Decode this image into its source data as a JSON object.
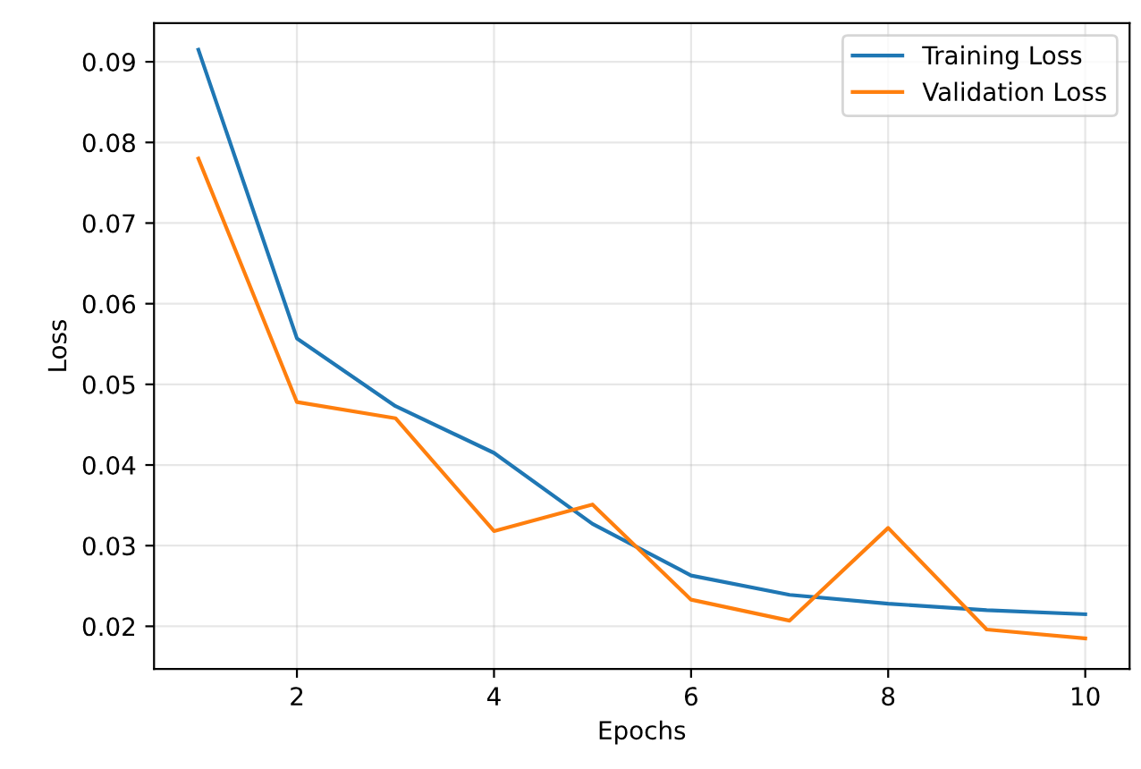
{
  "chart_data": {
    "type": "line",
    "xlabel": "Epochs",
    "ylabel": "Loss",
    "x": [
      1,
      2,
      3,
      4,
      5,
      6,
      7,
      8,
      9,
      10
    ],
    "series": [
      {
        "name": "Training Loss",
        "color": "#1f77b4",
        "values": [
          0.0915,
          0.0557,
          0.0473,
          0.0415,
          0.0327,
          0.0263,
          0.0239,
          0.0228,
          0.022,
          0.0215
        ]
      },
      {
        "name": "Validation Loss",
        "color": "#ff7f0e",
        "values": [
          0.078,
          0.0478,
          0.0458,
          0.0318,
          0.0351,
          0.0233,
          0.0207,
          0.0322,
          0.0196,
          0.0185
        ]
      }
    ],
    "xlim": [
      0.55,
      10.45
    ],
    "xticks": [
      2,
      4,
      6,
      8,
      10
    ],
    "ylim": [
      0.0147,
      0.0948
    ],
    "yticks": [
      0.02,
      0.03,
      0.04,
      0.05,
      0.06,
      0.07,
      0.08,
      0.09
    ],
    "grid": true,
    "legend": "top right",
    "marker": "none",
    "line_style": "solid"
  }
}
